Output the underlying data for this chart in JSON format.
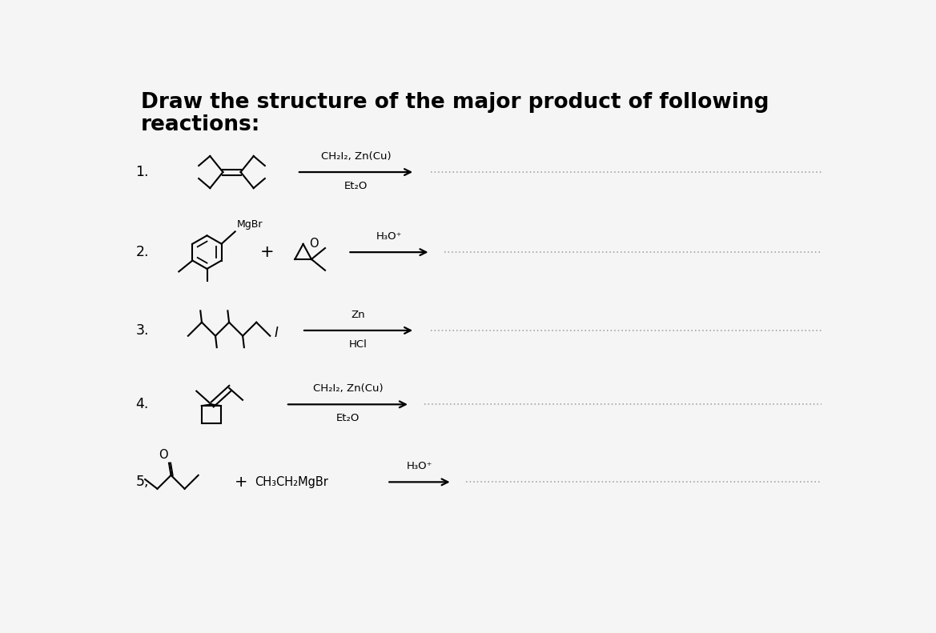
{
  "title_line1": "Draw the structure of the major product of following",
  "title_line2": "reactions:",
  "title_fontsize": 19,
  "title_fontweight": "bold",
  "background_color": "#f5f5f5",
  "text_color": "#000000",
  "reactions": [
    {
      "number": "1.",
      "arrow_label_top": "CH₂I₂, Zn(Cu)",
      "arrow_label_bottom": "Et₂O"
    },
    {
      "number": "2.",
      "arrow_label_top": "H₃O⁺",
      "arrow_label_bottom": ""
    },
    {
      "number": "3.",
      "arrow_label_top": "Zn",
      "arrow_label_bottom": "HCl"
    },
    {
      "number": "4.",
      "arrow_label_top": "CH₂I₂, Zn(Cu)",
      "arrow_label_bottom": "Et₂O"
    },
    {
      "number": "5,",
      "arrow_label_top": "H₃O⁺",
      "arrow_label_bottom": ""
    }
  ],
  "dotted_line_color": "#999999",
  "arrow_color": "#000000",
  "lw": 1.5
}
